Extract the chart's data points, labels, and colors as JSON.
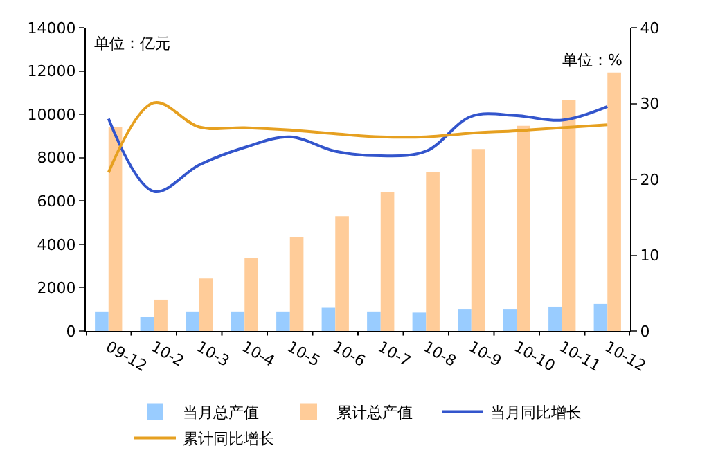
{
  "chart_data": {
    "type": "bar",
    "categories": [
      "09-12",
      "10-2",
      "10-3",
      "10-4",
      "10-5",
      "10-6",
      "10-7",
      "10-8",
      "10-9",
      "10-10",
      "10-11",
      "10-12"
    ],
    "series": [
      {
        "name": "当月总产值",
        "color": "#99ccff",
        "values": [
          900,
          640,
          900,
          900,
          900,
          1070,
          900,
          850,
          1020,
          1020,
          1120,
          1250
        ]
      },
      {
        "name": "累计总产值",
        "color": "#ffcc99",
        "values": [
          9400,
          1440,
          2420,
          3390,
          4350,
          5300,
          6400,
          7330,
          8400,
          9470,
          10660,
          11930
        ]
      },
      {
        "name": "当月同比增长",
        "type": "line",
        "axis": "y2",
        "color": "#3355cc",
        "values": [
          28.0,
          18.4,
          21.9,
          24.2,
          25.6,
          23.7,
          23.1,
          23.7,
          28.3,
          28.4,
          27.8,
          29.6
        ]
      },
      {
        "name": "累计同比增长",
        "type": "line",
        "axis": "y2",
        "color": "#e6a020",
        "values": [
          20.9,
          30.1,
          26.9,
          26.8,
          26.5,
          26.0,
          25.6,
          25.6,
          26.1,
          26.4,
          26.8,
          27.2
        ]
      }
    ],
    "ylim": [
      0,
      14000
    ],
    "yticks": [
      0,
      2000,
      4000,
      6000,
      8000,
      10000,
      12000,
      14000
    ],
    "y2lim": [
      0,
      40
    ],
    "y2ticks": [
      0,
      10,
      20,
      30,
      40
    ],
    "annotations": [
      "单位：亿元",
      "单位：%"
    ],
    "grid": false,
    "legend": "bottom",
    "marker": "none",
    "line_style": "solid"
  }
}
